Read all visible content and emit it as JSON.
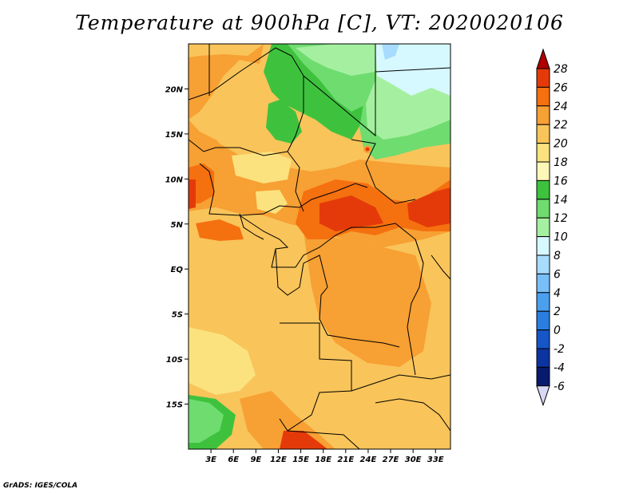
{
  "title": "Temperature at 900hPa [C], VT: 2020020106",
  "credit": "GrADS: IGES/COLA",
  "map": {
    "lat_labels": [
      {
        "text": "20N",
        "lat": 20
      },
      {
        "text": "15N",
        "lat": 15
      },
      {
        "text": "10N",
        "lat": 10
      },
      {
        "text": "5N",
        "lat": 5
      },
      {
        "text": "EQ",
        "lat": 0
      },
      {
        "text": "5S",
        "lat": -5
      },
      {
        "text": "10S",
        "lat": -10
      },
      {
        "text": "15S",
        "lat": -15
      }
    ],
    "lon_labels": [
      {
        "text": "3E",
        "lon": 3
      },
      {
        "text": "6E",
        "lon": 6
      },
      {
        "text": "9E",
        "lon": 9
      },
      {
        "text": "12E",
        "lon": 12
      },
      {
        "text": "15E",
        "lon": 15
      },
      {
        "text": "18E",
        "lon": 18
      },
      {
        "text": "21E",
        "lon": 21
      },
      {
        "text": "24E",
        "lon": 24
      },
      {
        "text": "27E",
        "lon": 27
      },
      {
        "text": "30E",
        "lon": 30
      },
      {
        "text": "33E",
        "lon": 33
      }
    ],
    "extent": {
      "lon_min": 0,
      "lon_max": 35,
      "lat_min": -20,
      "lat_max": 25
    }
  },
  "colorbar": {
    "levels": [
      "28",
      "26",
      "24",
      "22",
      "20",
      "18",
      "16",
      "14",
      "12",
      "10",
      "8",
      "6",
      "4",
      "2",
      "0",
      "-2",
      "-4",
      "-6"
    ],
    "colors": [
      "#b00000",
      "#e43a0a",
      "#f5700f",
      "#f7a033",
      "#f9c45a",
      "#fbe27f",
      "#fdf7b8",
      "#3ec23e",
      "#6fdc6f",
      "#a5f0a0",
      "#d6f8ff",
      "#a8dcff",
      "#78bff8",
      "#4aa0ee",
      "#2a7ee0",
      "#1656c6",
      "#0b34a0",
      "#081a6e",
      "#d8d8f6"
    ]
  }
}
